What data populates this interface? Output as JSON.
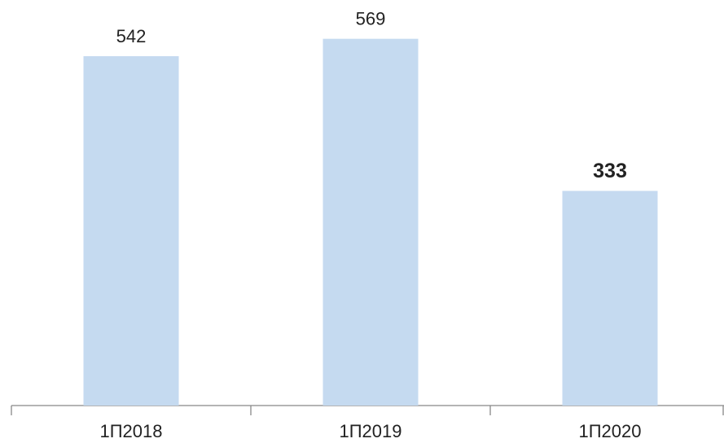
{
  "chart_data": {
    "type": "bar",
    "categories": [
      "1П2018",
      "1П2019",
      "1П2020"
    ],
    "values": [
      542,
      569,
      333
    ],
    "color": "#c5daf0"
  }
}
